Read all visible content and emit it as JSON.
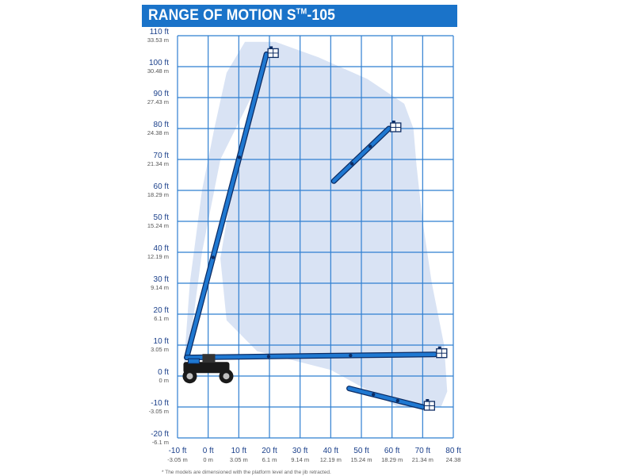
{
  "header": {
    "title_main": "RANGE OF MOTION S",
    "title_mark": "TM",
    "title_model": "-105"
  },
  "colors": {
    "header_bg": "#1a73c9",
    "grid": "#2f7fd1",
    "envelope": "#d9e3f4",
    "boom": "#1f78d1",
    "outline": "#0d2c63",
    "chassis": "#1a1a1a"
  },
  "chart_data": {
    "type": "range-of-motion",
    "x_axis": {
      "ft_labels": [
        "-10 ft",
        "0 ft",
        "10 ft",
        "20 ft",
        "30 ft",
        "40 ft",
        "50 ft",
        "60 ft",
        "70 ft",
        "80 ft"
      ],
      "m_labels": [
        "-3.05 m",
        "0 m",
        "3.05 m",
        "6.1 m",
        "9.14 m",
        "12.19 m",
        "15.24 m",
        "18.29 m",
        "21.34 m",
        "24.38"
      ],
      "range_ft": [
        -10,
        80
      ]
    },
    "y_axis": {
      "ft_labels": [
        "110 ft",
        "100 ft",
        "90 ft",
        "80 ft",
        "70 ft",
        "60 ft",
        "50 ft",
        "40 ft",
        "30 ft",
        "20 ft",
        "10 ft",
        "0 ft",
        "-10 ft",
        "-20 ft"
      ],
      "m_labels": [
        "33.53 m",
        "30.48 m",
        "27.43 m",
        "24.38 m",
        "21.34 m",
        "18.29 m",
        "15.24 m",
        "12.19 m",
        "9.14 m",
        "6.1 m",
        "3.05 m",
        "0 m",
        "-3.05 m",
        "-6.1 m"
      ],
      "range_ft": [
        -20,
        110
      ]
    },
    "grid": true,
    "envelope_ft": [
      [
        -8,
        2
      ],
      [
        -6,
        30
      ],
      [
        -2,
        60
      ],
      [
        2,
        80
      ],
      [
        6,
        98
      ],
      [
        12,
        108
      ],
      [
        22,
        108
      ],
      [
        36,
        103
      ],
      [
        52,
        96
      ],
      [
        64,
        88
      ],
      [
        67,
        80
      ],
      [
        68,
        68
      ],
      [
        70,
        50
      ],
      [
        73,
        30
      ],
      [
        77,
        10
      ],
      [
        78,
        -5
      ],
      [
        76,
        -10
      ],
      [
        62,
        -10
      ],
      [
        40,
        2
      ],
      [
        16,
        8
      ],
      [
        6,
        18
      ],
      [
        4,
        38
      ],
      [
        8,
        62
      ],
      [
        14,
        90
      ],
      [
        4,
        70
      ],
      [
        -2,
        40
      ],
      [
        -6,
        10
      ],
      [
        -8,
        2
      ]
    ],
    "boom_positions_ft": [
      {
        "name": "max-height",
        "from": [
          -7,
          6
        ],
        "to": [
          19,
          104
        ]
      },
      {
        "name": "mid-extension",
        "from": [
          41,
          63
        ],
        "to": [
          59,
          80
        ]
      },
      {
        "name": "max-horizontal",
        "from": [
          -7,
          6
        ],
        "to": [
          74,
          7
        ]
      },
      {
        "name": "below-grade",
        "from": [
          46,
          -4
        ],
        "to": [
          70,
          -10
        ]
      }
    ]
  },
  "footnote": "* The models are dimensioned with the platform level and the jib retracted."
}
